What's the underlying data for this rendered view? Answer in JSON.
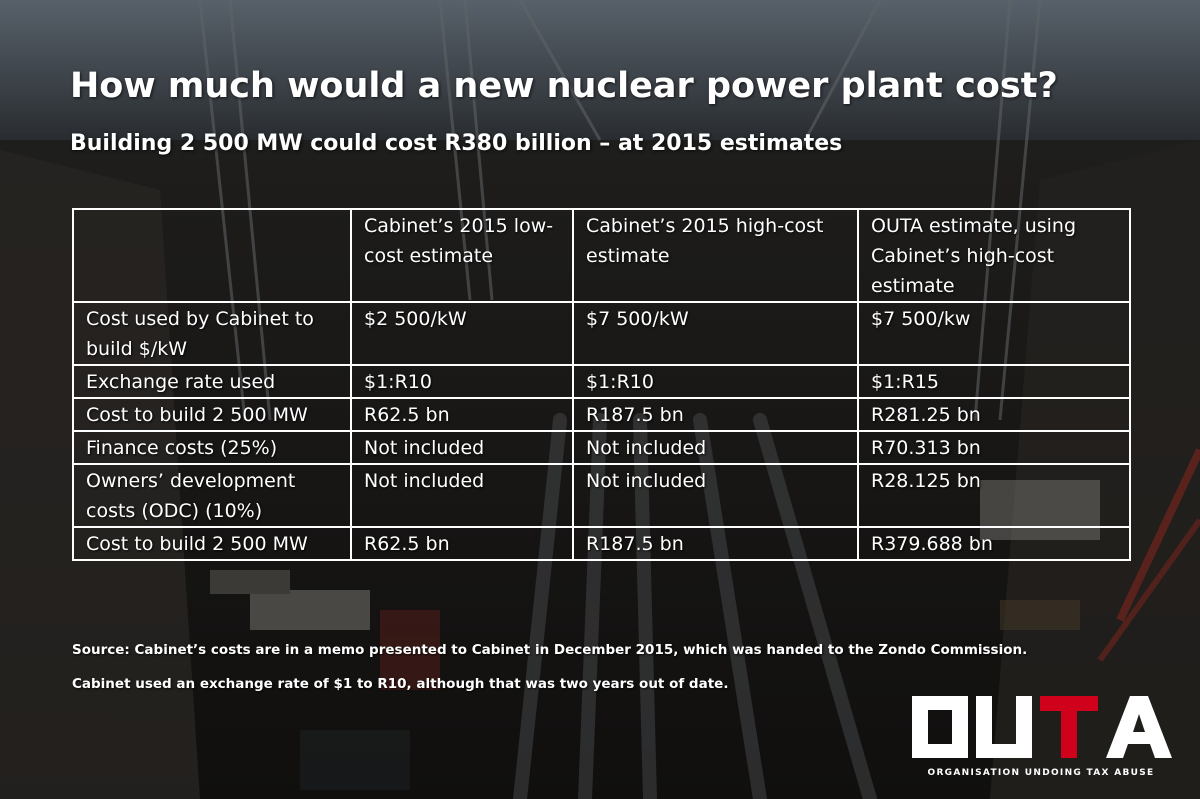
{
  "header": {
    "title": "How much would a new nuclear power plant cost?",
    "subtitle": "Building 2 500 MW could cost R380 billion – at 2015 estimates"
  },
  "table": {
    "columns": [
      "",
      "Cabinet’s 2015 low-cost estimate",
      "Cabinet’s 2015 high-cost estimate",
      "OUTA estimate, using Cabinet’s high-cost estimate"
    ],
    "rows": [
      {
        "label": "Cost used by Cabinet to build $/kW",
        "values": [
          "$2 500/kW",
          "$7 500/kW",
          "$7 500/kw"
        ]
      },
      {
        "label": "Exchange rate used",
        "values": [
          "$1:R10",
          "$1:R10",
          "$1:R15"
        ]
      },
      {
        "label": "Cost to build 2 500 MW",
        "values": [
          "R62.5 bn",
          "R187.5 bn",
          "R281.25 bn"
        ]
      },
      {
        "label": "Finance costs (25%)",
        "values": [
          "Not included",
          "Not included",
          "R70.313 bn"
        ]
      },
      {
        "label": "Owners’ development costs (ODC) (10%)",
        "values": [
          "Not included",
          "Not included",
          "R28.125 bn"
        ]
      },
      {
        "label": "Cost to build 2 500 MW",
        "values": [
          "R62.5 bn",
          "R187.5 bn",
          "R379.688 bn"
        ]
      }
    ]
  },
  "footer": {
    "source_line1": "Source: Cabinet’s costs are in a memo presented to Cabinet in December 2015, which was handed to the Zondo Commission.",
    "source_line2": "Cabinet used an exchange rate of $1 to R10, although that was two years out of date."
  },
  "logo": {
    "letters": [
      "O",
      "U",
      "T",
      "A"
    ],
    "tagline": "ORGANISATION UNDOING TAX ABUSE",
    "colors": {
      "white": "#ffffff",
      "red": "#d0021b"
    }
  },
  "theme": {
    "text": "#ffffff",
    "border": "#ffffff"
  }
}
